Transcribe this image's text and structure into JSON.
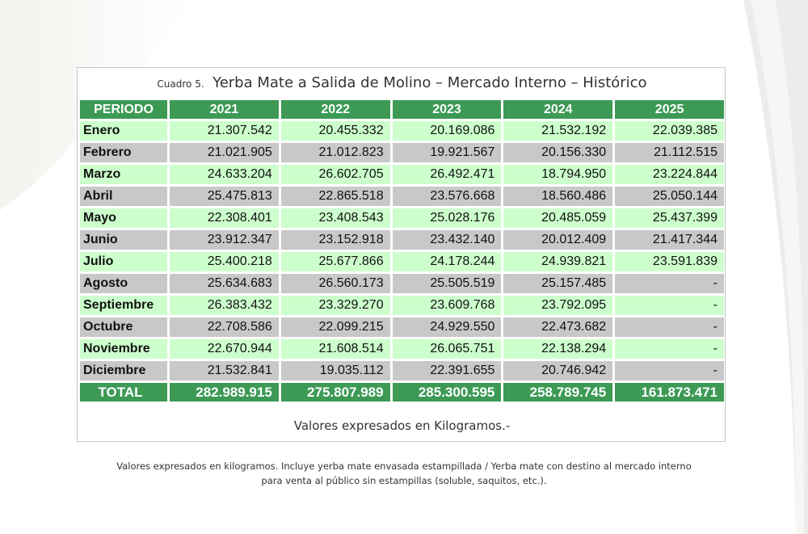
{
  "caption": {
    "number": "Cuadro 5.",
    "title": "Yerba Mate a Salida de Molino  – Mercado Interno – Histórico"
  },
  "table": {
    "headers": [
      "PERIODO",
      "2021",
      "2022",
      "2023",
      "2024",
      "2025"
    ],
    "rows": [
      [
        "Enero",
        "21.307.542",
        "20.455.332",
        "20.169.086",
        "21.532.192",
        "22.039.385"
      ],
      [
        "Febrero",
        "21.021.905",
        "21.012.823",
        "19.921.567",
        "20.156.330",
        "21.112.515"
      ],
      [
        "Marzo",
        "24.633.204",
        "26.602.705",
        "26.492.471",
        "18.794.950",
        "23.224.844"
      ],
      [
        "Abril",
        "25.475.813",
        "22.865.518",
        "23.576.668",
        "18.560.486",
        "25.050.144"
      ],
      [
        "Mayo",
        "22.308.401",
        "23.408.543",
        "25.028.176",
        "20.485.059",
        "25.437.399"
      ],
      [
        "Junio",
        "23.912.347",
        "23.152.918",
        "23.432.140",
        "20.012.409",
        "21.417.344"
      ],
      [
        "Julio",
        "25.400.218",
        "25.677.866",
        "24.178.244",
        "24.939.821",
        "23.591.839"
      ],
      [
        "Agosto",
        "25.634.683",
        "26.560.173",
        "25.505.519",
        "25.157.485",
        "-"
      ],
      [
        "Septiembre",
        "26.383.432",
        "23.329.270",
        "23.609.768",
        "23.792.095",
        "-"
      ],
      [
        "Octubre",
        "22.708.586",
        "22.099.215",
        "24.929.550",
        "22.473.682",
        "-"
      ],
      [
        "Noviembre",
        "22.670.944",
        "21.608.514",
        "26.065.751",
        "22.138.294",
        "-"
      ],
      [
        "Diciembre",
        "21.532.841",
        "19.035.112",
        "22.391.655",
        "20.746.942",
        "-"
      ]
    ],
    "total": [
      "TOTAL",
      "282.989.915",
      "275.807.989",
      "285.300.595",
      "258.789.745",
      "161.873.471"
    ]
  },
  "note": "Valores expresados en Kilogramos.-",
  "footnote": {
    "line1": "Valores expresados en kilogramos. Incluye yerba mate envasada estampillada / Yerba mate con destino al mercado interno",
    "line2": "para venta al público sin estampillas (soluble, saquitos, etc.)."
  },
  "colors": {
    "header_green": "#3c9a55",
    "row_light_green": "#ccffcc",
    "row_gray": "#c8c8c8"
  }
}
